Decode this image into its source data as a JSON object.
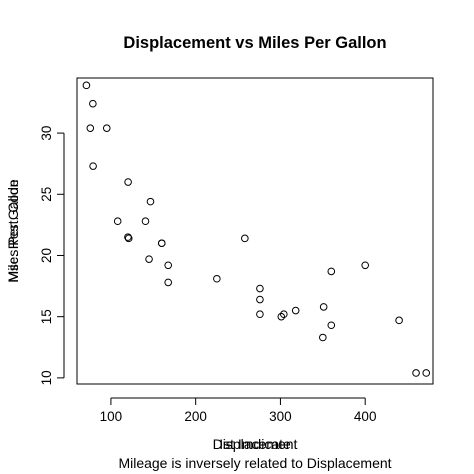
{
  "chart_data": {
    "type": "scatter",
    "title": "Displacement vs Miles Per Gallon",
    "xlabel": "Displacement",
    "ylabel": "Miles Per Gallon",
    "overlap_xlabel_1": "Displacement",
    "overlap_xlabel_2": "Ist Imdicate",
    "overlap_ylabel_1": "Miles Per Gallon",
    "overlap_ylabel_2": "Msc. Rest. Code",
    "subtitle": "Mileage is inversely related to Displacement",
    "xlim": [
      60,
      480
    ],
    "ylim": [
      9.5,
      34.5
    ],
    "grid": false,
    "x_ticks": [
      "100",
      "200",
      "300",
      "400"
    ],
    "y_ticks": [
      "10",
      "15",
      "20",
      "25",
      "30"
    ],
    "point_color": "#000000",
    "x": [
      160,
      160,
      108,
      258,
      360,
      225,
      360,
      146.7,
      140.8,
      167.6,
      167.6,
      275.8,
      275.8,
      275.8,
      472,
      460,
      440,
      78.7,
      75.7,
      71.1,
      120.1,
      318,
      304,
      350,
      400,
      79,
      120.3,
      95.1,
      351,
      145,
      301,
      121
    ],
    "y": [
      21,
      21,
      22.8,
      21.4,
      18.7,
      18.1,
      14.3,
      24.4,
      22.8,
      19.2,
      17.8,
      16.4,
      17.3,
      15.2,
      10.4,
      10.4,
      14.7,
      32.4,
      30.4,
      33.9,
      21.5,
      15.5,
      15.2,
      13.3,
      19.2,
      27.3,
      26,
      30.4,
      15.8,
      19.7,
      15,
      21.4
    ]
  }
}
